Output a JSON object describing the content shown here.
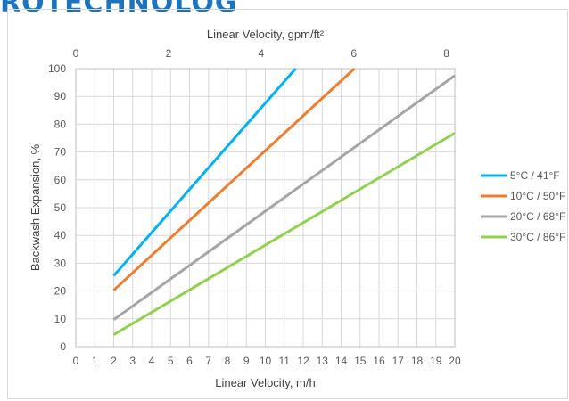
{
  "page": {
    "header_text": "ROTECHNOLOG"
  },
  "chart_data": {
    "type": "line",
    "x_bottom": {
      "label": "Linear Velocity, m/h",
      "range": [
        0,
        20
      ],
      "ticks": [
        0,
        1,
        2,
        3,
        4,
        5,
        6,
        7,
        8,
        9,
        10,
        11,
        12,
        13,
        14,
        15,
        16,
        17,
        18,
        19,
        20
      ]
    },
    "x_top": {
      "label": "Linear Velocity, gpm/ft²",
      "range": [
        0,
        8.18
      ],
      "ticks": [
        0,
        2,
        4,
        6,
        8
      ]
    },
    "y": {
      "label": "Backwash Expansion, %",
      "range": [
        0,
        100
      ],
      "ticks": [
        0,
        10,
        20,
        30,
        40,
        50,
        60,
        70,
        80,
        90,
        100
      ]
    },
    "grid": true,
    "legend_position": "right",
    "series": [
      {
        "name": "5°C / 41°F",
        "color": "#00b0f0",
        "points": [
          [
            2,
            25.5
          ],
          [
            11.6,
            100
          ]
        ]
      },
      {
        "name": "10°C / 50°F",
        "color": "#ed7d31",
        "points": [
          [
            2,
            20.3
          ],
          [
            14.7,
            100
          ]
        ]
      },
      {
        "name": "20°C / 68°F",
        "color": "#a5a5a5",
        "points": [
          [
            2,
            9.7
          ],
          [
            20,
            97.5
          ]
        ]
      },
      {
        "name": "30°C / 86°F",
        "color": "#92d050",
        "points": [
          [
            2,
            4.3
          ],
          [
            20,
            76.8
          ]
        ]
      }
    ]
  }
}
